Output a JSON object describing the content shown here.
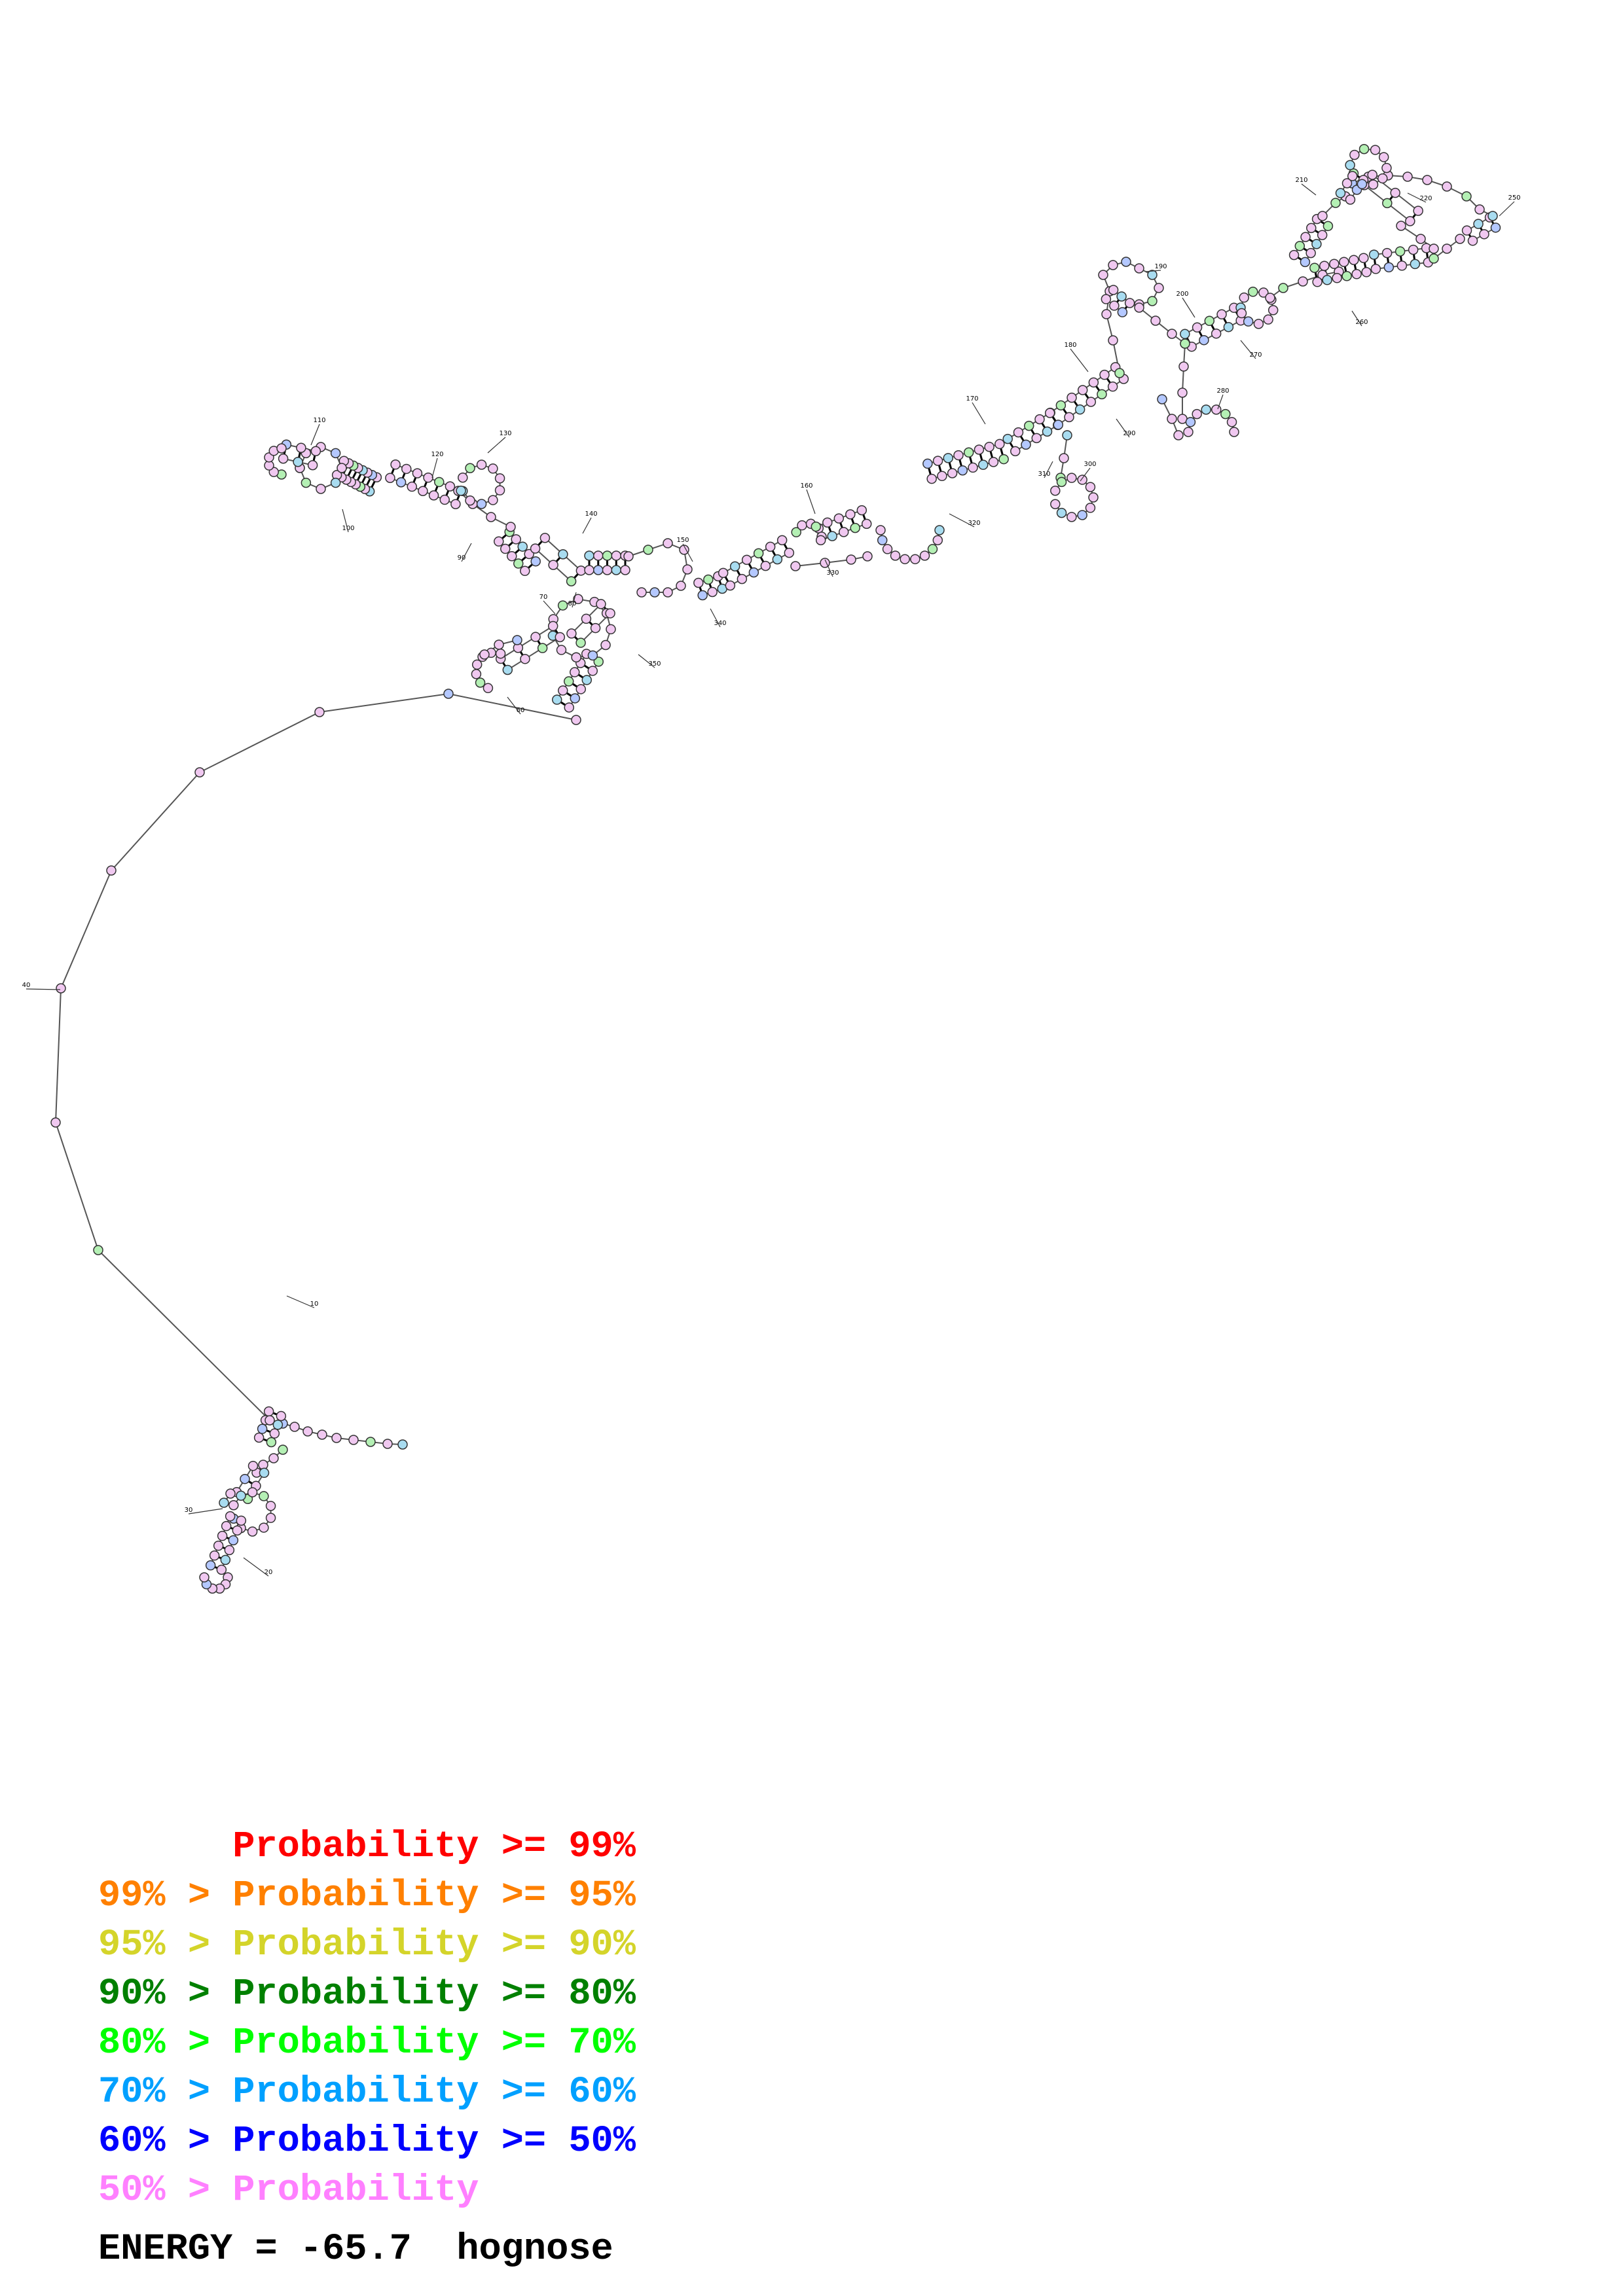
{
  "position_labels": [
    "10",
    "20",
    "30",
    "40",
    "60",
    "70",
    "80",
    "90",
    "100",
    "110",
    "120",
    "130",
    "140",
    "150",
    "160",
    "170",
    "180",
    "190",
    "200",
    "210",
    "220",
    "250",
    "260",
    "270",
    "280",
    "290",
    "300",
    "310",
    "320",
    "330",
    "340",
    "350"
  ],
  "legend": {
    "rows": [
      {
        "prefix": "",
        "text": "Probability >= 99%",
        "color": "#ff0000"
      },
      {
        "prefix": "99% > ",
        "text": "Probability >= 95%",
        "color": "#ff8000"
      },
      {
        "prefix": "95% > ",
        "text": "Probability >= 90%",
        "color": "#d4d42a"
      },
      {
        "prefix": "90% > ",
        "text": "Probability >= 80%",
        "color": "#008000"
      },
      {
        "prefix": "80% > ",
        "text": "Probability >= 70%",
        "color": "#00ff00"
      },
      {
        "prefix": "70% > ",
        "text": "Probability >= 60%",
        "color": "#00a0ff"
      },
      {
        "prefix": "60% > ",
        "text": "Probability >= 50%",
        "color": "#0000ff"
      },
      {
        "prefix": "50% > ",
        "text": "Probability",
        "color": "#ff80ff"
      }
    ]
  },
  "energy": {
    "label": "ENERGY = ",
    "value": "-65.7",
    "name": "hognose"
  },
  "node_fill_colors": {
    "pink": "#f0c8f0",
    "blue": "#b4c8ff",
    "cyan": "#a8dcf0",
    "green": "#b4f0b4",
    "yellow": "#f0f0b4",
    "orange": "#f0c8a0"
  }
}
